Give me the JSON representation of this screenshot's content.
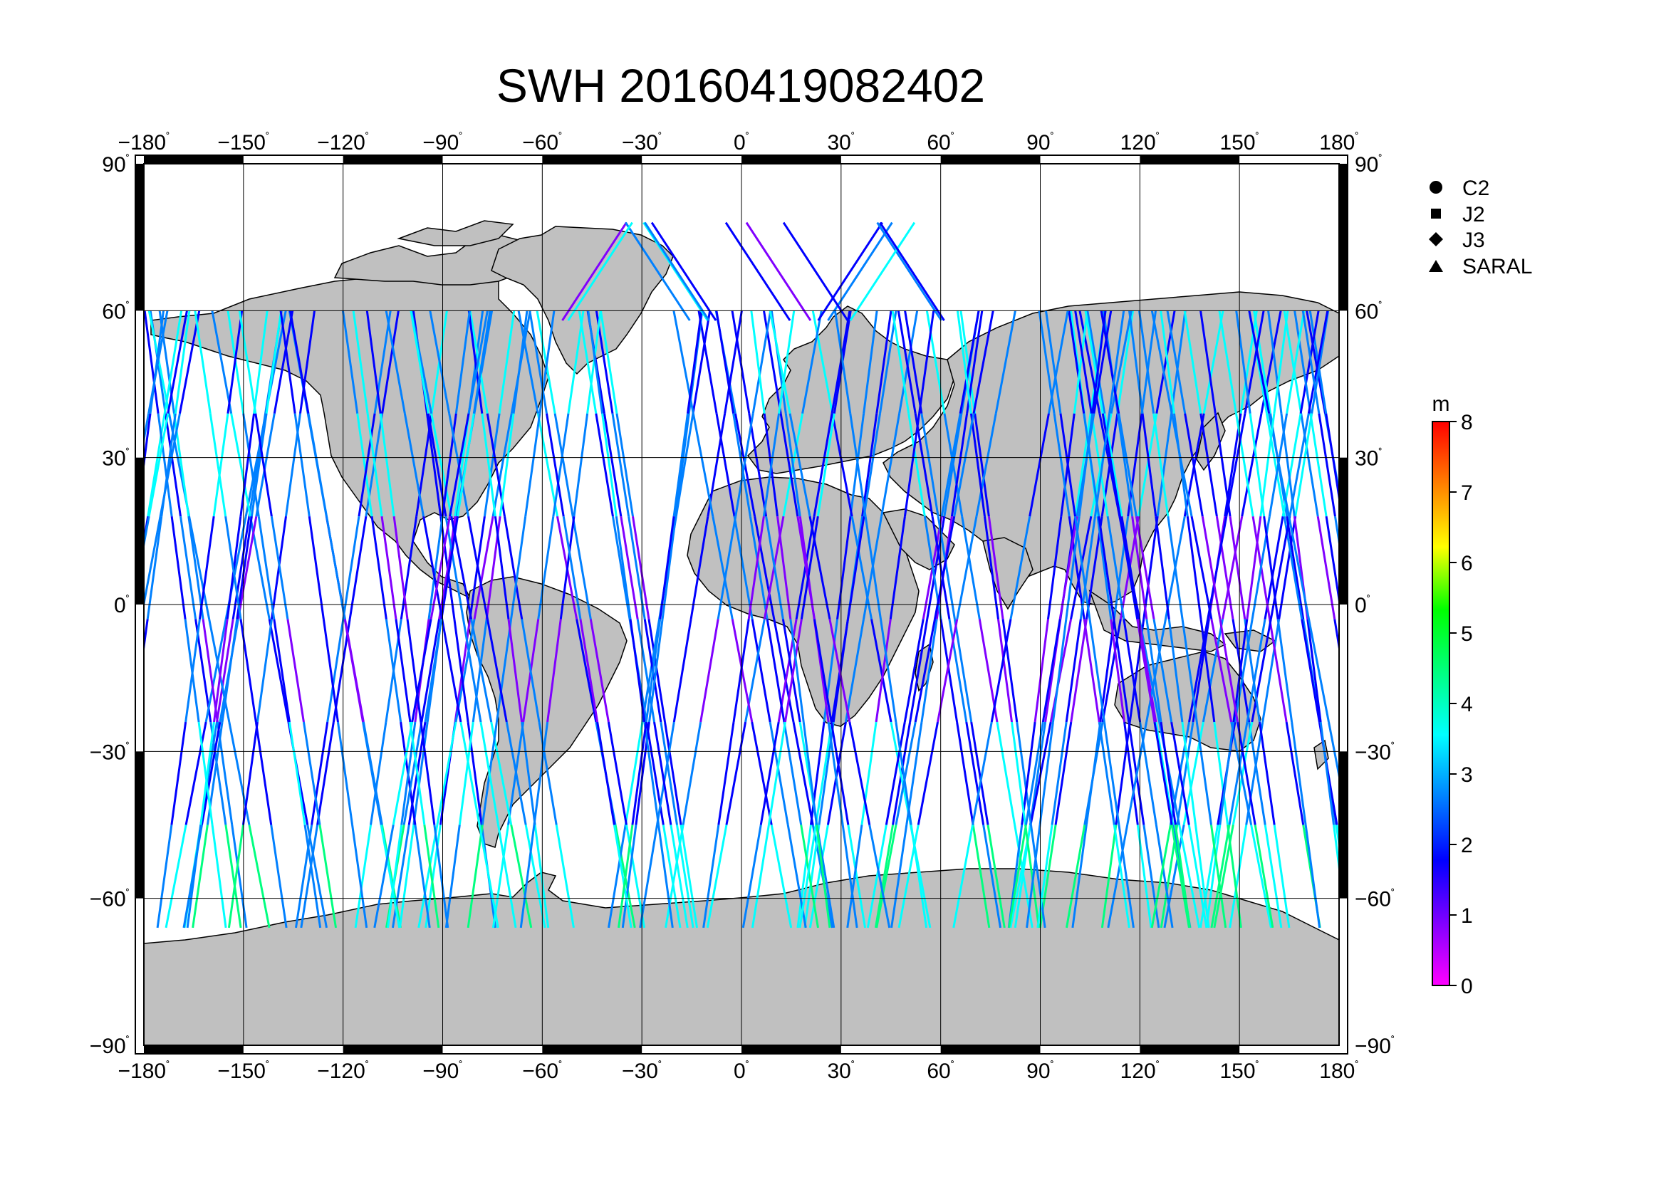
{
  "title": "SWH 20160419082402",
  "map": {
    "lon_ticks": [
      -180,
      -150,
      -120,
      -90,
      -60,
      -30,
      0,
      30,
      60,
      90,
      120,
      150,
      180
    ],
    "lat_ticks": [
      90,
      60,
      30,
      0,
      -30,
      -60,
      -90
    ],
    "lon_labels": [
      "−180",
      "−150",
      "−120",
      "−90",
      "−60",
      "−30",
      "0",
      "30",
      "60",
      "90",
      "120",
      "150",
      "180"
    ],
    "lat_labels": [
      "90",
      "60",
      "30",
      "0",
      "−30",
      "−60",
      "−90"
    ],
    "degree_symbol": "˚",
    "land_color": "#c0c0c0",
    "ocean_color": "#ffffff"
  },
  "legend": {
    "items": [
      {
        "marker": "circle",
        "label": "C2"
      },
      {
        "marker": "square",
        "label": "J2"
      },
      {
        "marker": "diamond",
        "label": "J3"
      },
      {
        "marker": "triangle",
        "label": "SARAL"
      }
    ]
  },
  "colorbar": {
    "unit": "m",
    "min": 0,
    "max": 8,
    "tick_labels": [
      "0",
      "1",
      "2",
      "3",
      "4",
      "5",
      "6",
      "7",
      "8"
    ],
    "colors": [
      "#ff00ff",
      "#8000ff",
      "#0000ff",
      "#0080ff",
      "#00ffff",
      "#00ff80",
      "#00ff00",
      "#ffff00",
      "#ff8000",
      "#ff0000"
    ]
  }
}
